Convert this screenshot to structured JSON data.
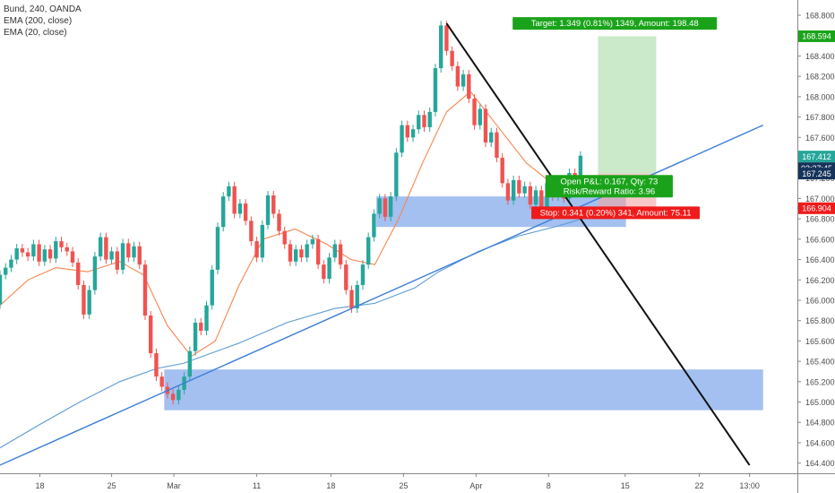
{
  "chart_data": {
    "type": "candlestick",
    "legend": {
      "symbol": "Bund, 240, OANDA",
      "ema200": "EMA (200, close)",
      "ema20": "EMA (20, close)"
    },
    "ylim": [
      164.3,
      168.95
    ],
    "y_ticks": [
      "168.800",
      "168.400",
      "168.200",
      "168.000",
      "167.800",
      "167.600",
      "167.200",
      "167.000",
      "166.800",
      "166.600",
      "166.400",
      "166.200",
      "166.000",
      "165.800",
      "165.600",
      "165.400",
      "165.200",
      "165.000",
      "164.800",
      "164.600",
      "164.400"
    ],
    "x_tick_labels": [
      {
        "label": "18",
        "x": 0.05
      },
      {
        "label": "25",
        "x": 0.14
      },
      {
        "label": "Mar",
        "x": 0.218
      },
      {
        "label": "11",
        "x": 0.322
      },
      {
        "label": "18",
        "x": 0.415
      },
      {
        "label": "25",
        "x": 0.506
      },
      {
        "label": "Apr",
        "x": 0.597
      },
      {
        "label": "8",
        "x": 0.688
      },
      {
        "label": "15",
        "x": 0.784
      },
      {
        "label": "22",
        "x": 0.877
      },
      {
        "label": "13:00",
        "x": 0.94
      }
    ],
    "price_labels": {
      "target": "168.594",
      "last": "167.412",
      "countdown": "03:37:45",
      "entry": "167.245",
      "stop": "166.904"
    },
    "position": {
      "entry": 167.245,
      "target": 168.594,
      "stop": 166.904,
      "target_text": "Target: 1.349 (0.81%) 1349, Amount: 198.48",
      "open_pl_text": "Open P&L: 0.167, Qty: 73",
      "rr_text": "Risk/Reward Ratio: 3.96",
      "stop_text": "Stop: 0.341 (0.20%) 341, Amount: 75.11"
    },
    "zones": [
      {
        "from_x": 0.472,
        "to_x": 0.785,
        "low": 166.72,
        "high": 167.02
      },
      {
        "from_x": 0.206,
        "to_x": 0.957,
        "low": 164.92,
        "high": 165.32
      }
    ],
    "series": [
      {
        "name": "Bund, 240, OANDA",
        "type": "candlestick",
        "points": [
          [
            0.0,
            165.96,
            166.25
          ],
          [
            0.007,
            166.25,
            166.32
          ],
          [
            0.014,
            166.32,
            166.4
          ],
          [
            0.021,
            166.4,
            166.51
          ],
          [
            0.028,
            166.51,
            166.47
          ],
          [
            0.035,
            166.47,
            166.43
          ],
          [
            0.042,
            166.43,
            166.55
          ],
          [
            0.049,
            166.55,
            166.38
          ],
          [
            0.056,
            166.38,
            166.5
          ],
          [
            0.063,
            166.5,
            166.41
          ],
          [
            0.07,
            166.41,
            166.58
          ],
          [
            0.077,
            166.58,
            166.52
          ],
          [
            0.084,
            166.52,
            166.48
          ],
          [
            0.091,
            166.48,
            166.37
          ],
          [
            0.098,
            166.37,
            166.15
          ],
          [
            0.105,
            166.15,
            165.86
          ],
          [
            0.112,
            165.86,
            166.1
          ],
          [
            0.119,
            166.1,
            166.43
          ],
          [
            0.126,
            166.43,
            166.62
          ],
          [
            0.133,
            166.62,
            166.4
          ],
          [
            0.14,
            166.4,
            166.48
          ],
          [
            0.147,
            166.48,
            166.3
          ],
          [
            0.154,
            166.3,
            166.56
          ],
          [
            0.161,
            166.56,
            166.42
          ],
          [
            0.168,
            166.42,
            166.53
          ],
          [
            0.175,
            166.53,
            166.35
          ],
          [
            0.182,
            166.35,
            165.85
          ],
          [
            0.189,
            165.85,
            165.48
          ],
          [
            0.196,
            165.48,
            165.25
          ],
          [
            0.203,
            165.25,
            165.15
          ],
          [
            0.21,
            165.15,
            165.08
          ],
          [
            0.217,
            165.08,
            165.02
          ],
          [
            0.224,
            165.02,
            165.12
          ],
          [
            0.231,
            165.12,
            165.25
          ],
          [
            0.238,
            165.25,
            165.5
          ],
          [
            0.245,
            165.5,
            165.78
          ],
          [
            0.252,
            165.78,
            165.7
          ],
          [
            0.259,
            165.7,
            165.95
          ],
          [
            0.266,
            165.95,
            166.3
          ],
          [
            0.273,
            166.3,
            166.72
          ],
          [
            0.28,
            166.72,
            167.02
          ],
          [
            0.287,
            167.02,
            167.12
          ],
          [
            0.294,
            167.12,
            166.85
          ],
          [
            0.301,
            166.85,
            166.95
          ],
          [
            0.308,
            166.95,
            166.78
          ],
          [
            0.315,
            166.78,
            166.58
          ],
          [
            0.322,
            166.58,
            166.42
          ],
          [
            0.329,
            166.42,
            166.74
          ],
          [
            0.336,
            166.74,
            167.03
          ],
          [
            0.343,
            167.03,
            166.85
          ],
          [
            0.35,
            166.85,
            166.68
          ],
          [
            0.357,
            166.68,
            166.55
          ],
          [
            0.364,
            166.55,
            166.38
          ],
          [
            0.371,
            166.38,
            166.5
          ],
          [
            0.378,
            166.5,
            166.42
          ],
          [
            0.385,
            166.42,
            166.55
          ],
          [
            0.392,
            166.55,
            166.6
          ],
          [
            0.399,
            166.6,
            166.35
          ],
          [
            0.406,
            166.35,
            166.21
          ],
          [
            0.413,
            166.21,
            166.42
          ],
          [
            0.42,
            166.42,
            166.55
          ],
          [
            0.427,
            166.55,
            166.35
          ],
          [
            0.434,
            166.35,
            166.1
          ],
          [
            0.441,
            166.1,
            165.92
          ],
          [
            0.448,
            165.92,
            166.15
          ],
          [
            0.455,
            166.15,
            166.35
          ],
          [
            0.462,
            166.35,
            166.62
          ],
          [
            0.469,
            166.62,
            166.85
          ],
          [
            0.476,
            166.85,
            167.0
          ],
          [
            0.483,
            167.0,
            166.82
          ],
          [
            0.49,
            166.82,
            167.02
          ],
          [
            0.497,
            167.02,
            167.45
          ],
          [
            0.504,
            167.45,
            167.72
          ],
          [
            0.511,
            167.72,
            167.6
          ],
          [
            0.518,
            167.6,
            167.68
          ],
          [
            0.525,
            167.68,
            167.82
          ],
          [
            0.532,
            167.82,
            167.7
          ],
          [
            0.539,
            167.7,
            167.85
          ],
          [
            0.546,
            167.85,
            168.28
          ],
          [
            0.553,
            168.28,
            168.7
          ],
          [
            0.56,
            168.7,
            168.45
          ],
          [
            0.567,
            168.45,
            168.3
          ],
          [
            0.574,
            168.3,
            168.1
          ],
          [
            0.581,
            168.1,
            168.22
          ],
          [
            0.588,
            168.22,
            167.98
          ],
          [
            0.595,
            167.98,
            167.72
          ],
          [
            0.602,
            167.72,
            167.88
          ],
          [
            0.609,
            167.88,
            167.55
          ],
          [
            0.616,
            167.55,
            167.65
          ],
          [
            0.623,
            167.65,
            167.4
          ],
          [
            0.63,
            167.4,
            167.15
          ],
          [
            0.637,
            167.15,
            166.98
          ],
          [
            0.644,
            166.98,
            167.18
          ],
          [
            0.651,
            167.18,
            167.05
          ],
          [
            0.658,
            167.05,
            167.12
          ],
          [
            0.665,
            167.12,
            166.94
          ],
          [
            0.672,
            166.94,
            167.08
          ],
          [
            0.679,
            167.08,
            166.92
          ],
          [
            0.686,
            166.92,
            167.15
          ],
          [
            0.693,
            167.15,
            167.02
          ],
          [
            0.7,
            167.02,
            167.1
          ],
          [
            0.707,
            167.1,
            167.0
          ],
          [
            0.714,
            167.0,
            167.25
          ],
          [
            0.721,
            167.25,
            167.2
          ],
          [
            0.728,
            167.2,
            167.42
          ]
        ]
      },
      {
        "name": "EMA (200, close)",
        "type": "line",
        "color": "#5b9bd5",
        "points": [
          [
            0.0,
            164.55
          ],
          [
            0.05,
            164.78
          ],
          [
            0.1,
            165.0
          ],
          [
            0.15,
            165.2
          ],
          [
            0.197,
            165.33
          ],
          [
            0.23,
            165.38
          ],
          [
            0.3,
            165.58
          ],
          [
            0.36,
            165.78
          ],
          [
            0.42,
            165.92
          ],
          [
            0.47,
            165.97
          ],
          [
            0.52,
            166.12
          ],
          [
            0.55,
            166.28
          ],
          [
            0.6,
            166.48
          ],
          [
            0.65,
            166.63
          ],
          [
            0.7,
            166.73
          ],
          [
            0.73,
            166.8
          ]
        ]
      },
      {
        "name": "EMA (20, close)",
        "type": "line",
        "color": "#f5874f",
        "points": [
          [
            0.0,
            165.95
          ],
          [
            0.035,
            166.2
          ],
          [
            0.07,
            166.32
          ],
          [
            0.11,
            166.28
          ],
          [
            0.15,
            166.38
          ],
          [
            0.18,
            166.25
          ],
          [
            0.21,
            165.75
          ],
          [
            0.24,
            165.45
          ],
          [
            0.27,
            165.6
          ],
          [
            0.3,
            166.15
          ],
          [
            0.33,
            166.6
          ],
          [
            0.37,
            166.7
          ],
          [
            0.41,
            166.55
          ],
          [
            0.44,
            166.4
          ],
          [
            0.47,
            166.35
          ],
          [
            0.5,
            166.8
          ],
          [
            0.53,
            167.35
          ],
          [
            0.56,
            167.85
          ],
          [
            0.59,
            168.05
          ],
          [
            0.62,
            167.75
          ],
          [
            0.66,
            167.35
          ],
          [
            0.7,
            167.1
          ],
          [
            0.73,
            167.1
          ]
        ]
      }
    ],
    "trendlines": [
      {
        "from": [
          0.0,
          164.38
        ],
        "to": [
          0.957,
          167.72
        ],
        "color": "#3b7dd8"
      },
      {
        "from": [
          0.56,
          168.72
        ],
        "to": [
          0.94,
          164.38
        ],
        "color": "#111111"
      }
    ],
    "colors": {
      "up": "#26a69a",
      "down": "#ef5350",
      "target": "#3cb371",
      "stop": "#ef2b2b",
      "zone": "#7fa8ec",
      "countdown": "#16335a"
    }
  }
}
